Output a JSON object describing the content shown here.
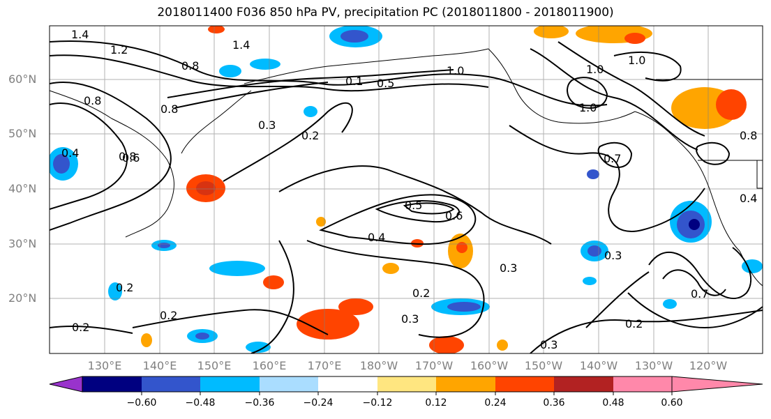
{
  "title": "2018011400 F036 850 hPa PV, precipitation PC (2018011800 - 2018011900)",
  "lat_labels": [
    "60°N",
    "50°N",
    "40°N",
    "30°N",
    "20°N"
  ],
  "lon_labels": [
    "130°E",
    "140°E",
    "150°E",
    "160°E",
    "170°E",
    "180°W",
    "170°W",
    "160°W",
    "150°W",
    "140°W",
    "130°W",
    "120°W"
  ],
  "colorbar": {
    "ticks": [
      "−0.60",
      "−0.48",
      "−0.36",
      "−0.24",
      "−0.12",
      "0.12",
      "0.24",
      "0.36",
      "0.48",
      "0.60"
    ],
    "colors": [
      "#9933cc",
      "#000080",
      "#3355cc",
      "#00bbff",
      "#aaddff",
      "#ffffff",
      "#ffe680",
      "#ffa500",
      "#ff4400",
      "#b22222",
      "#ff88aa"
    ]
  },
  "contour_labels": [
    "1.4",
    "1.2",
    "0.8",
    "1.4",
    "0.8",
    "0.8",
    "0.3",
    "0.2",
    "0.5",
    "0.1",
    "0.6",
    "1.0",
    "1.0",
    "1.0",
    "1.0",
    "0.8",
    "0.7",
    "0.4",
    "0.5",
    "0.6",
    "0.4",
    "0.3",
    "0.2",
    "0.3",
    "0.2",
    "0.2",
    "0.2",
    "0.3",
    "0.7",
    "0.2",
    "0.3",
    "0.8",
    "0.4"
  ]
}
